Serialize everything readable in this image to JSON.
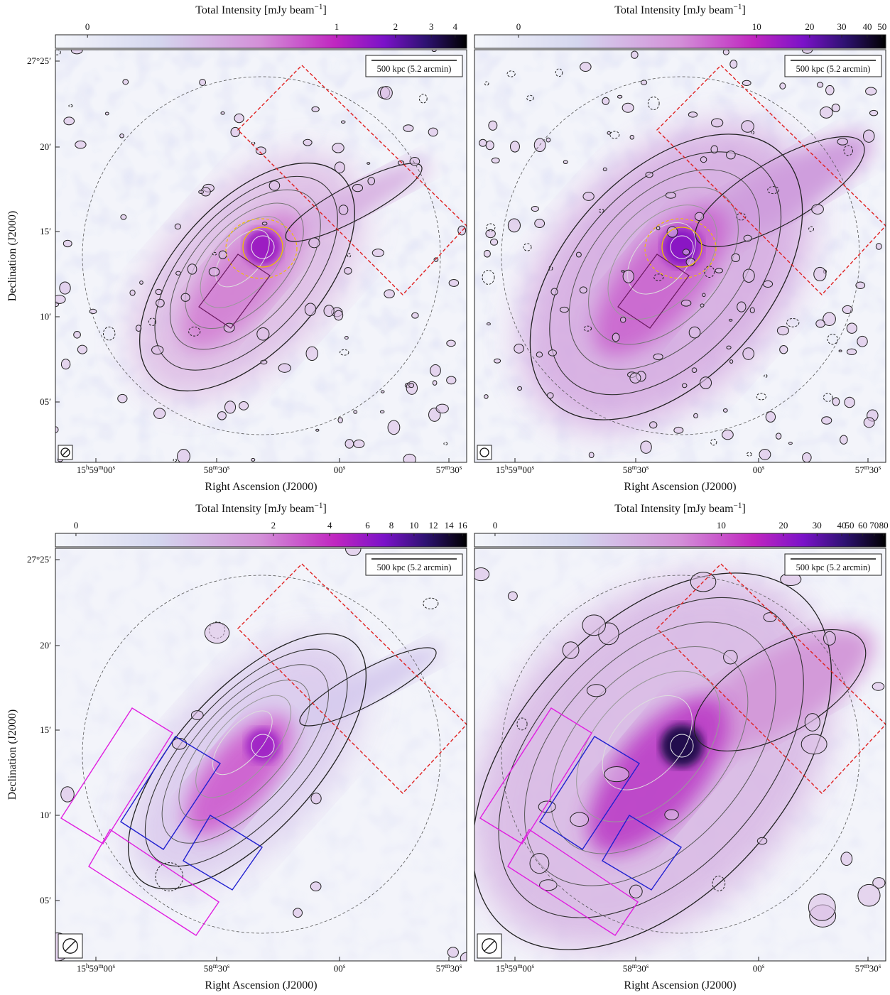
{
  "panels": [
    {
      "colorbar_label": "Total Intensity [mJy beam−1]",
      "colorbar_ticks": [
        0,
        1,
        2,
        3,
        4
      ],
      "scale_bar": "500 kpc (5.2 arcmin)",
      "x_label": "Right Ascension (J2000)",
      "x_ticks": [
        "15h59m00s",
        "58m30s",
        "00s",
        "57m30s"
      ],
      "y_label": "Declination (J2000)",
      "y_ticks": [
        "27°25′",
        "20′",
        "15′",
        "10′",
        "05′"
      ]
    },
    {
      "colorbar_label": "Total Intensity [mJy beam−1]",
      "colorbar_ticks": [
        0,
        10,
        20,
        30,
        40,
        50
      ],
      "scale_bar": "500 kpc (5.2 arcmin)",
      "x_label": "Right Ascension (J2000)",
      "x_ticks": [
        "15h59m00s",
        "58m30s",
        "00s",
        "57m30s"
      ]
    },
    {
      "colorbar_label": "Total Intensity [mJy beam−1]",
      "colorbar_ticks": [
        0,
        2,
        4,
        6,
        8,
        10,
        12,
        14,
        16
      ],
      "scale_bar": "500 kpc (5.2 arcmin)",
      "x_label": "Right Ascension (J2000)",
      "x_ticks": [
        "15h59m00s",
        "58m30s",
        "00s",
        "57m30s"
      ],
      "y_label": "Declination (J2000)",
      "y_ticks": [
        "27°25′",
        "20′",
        "15′",
        "10′",
        "05′"
      ]
    },
    {
      "colorbar_label": "Total Intensity [mJy beam−1]",
      "colorbar_ticks": [
        0,
        10,
        20,
        30,
        40,
        50,
        60,
        70,
        80
      ],
      "scale_bar": "500 kpc (5.2 arcmin)",
      "x_label": "Right Ascension (J2000)",
      "x_ticks": [
        "15h59m00s",
        "58m30s",
        "00s",
        "57m30s"
      ]
    }
  ]
}
